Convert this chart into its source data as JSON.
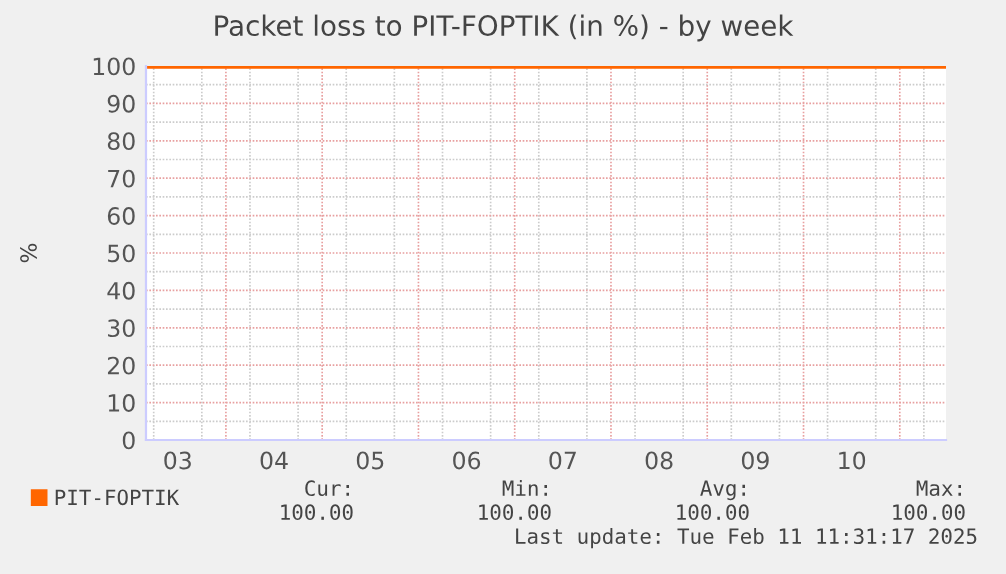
{
  "chart_data": {
    "type": "line",
    "title": "Packet loss to PIT-FOPTIK (in %) - by week",
    "ylabel": "%",
    "series": [
      {
        "name": "PIT-FOPTIK",
        "color": "#ff6600",
        "x": [
          3.17,
          11.48
        ],
        "values": [
          100,
          100
        ]
      }
    ],
    "xlim": [
      3.17,
      11.48
    ],
    "xticks": [
      {
        "value": 4,
        "label": null
      },
      {
        "value": 5,
        "label": null
      },
      {
        "value": 6,
        "label": null
      },
      {
        "value": 7,
        "label": null
      },
      {
        "value": 8,
        "label": null
      },
      {
        "value": 9,
        "label": null
      },
      {
        "value": 10,
        "label": null
      },
      {
        "value": 11,
        "label": null
      },
      {
        "value": 3.5,
        "label": "03"
      },
      {
        "value": 4.5,
        "label": "04"
      },
      {
        "value": 5.5,
        "label": "05"
      },
      {
        "value": 6.5,
        "label": "06"
      },
      {
        "value": 7.5,
        "label": "07"
      },
      {
        "value": 8.5,
        "label": "08"
      },
      {
        "value": 9.5,
        "label": "09"
      },
      {
        "value": 10.5,
        "label": "10"
      }
    ],
    "ylim": [
      0,
      100
    ],
    "yticks": [
      0,
      10,
      20,
      30,
      40,
      50,
      60,
      70,
      80,
      90,
      100
    ],
    "grid": true,
    "legend": "bottom left",
    "marker": "none",
    "line_style": "solid",
    "annotations": [
      "Cur:",
      "100.00",
      "Min:",
      "100.00",
      "Avg:",
      "100.00",
      "Max:",
      "100.00",
      "Last update: Tue Feb 11 11:31:17 2025"
    ]
  }
}
